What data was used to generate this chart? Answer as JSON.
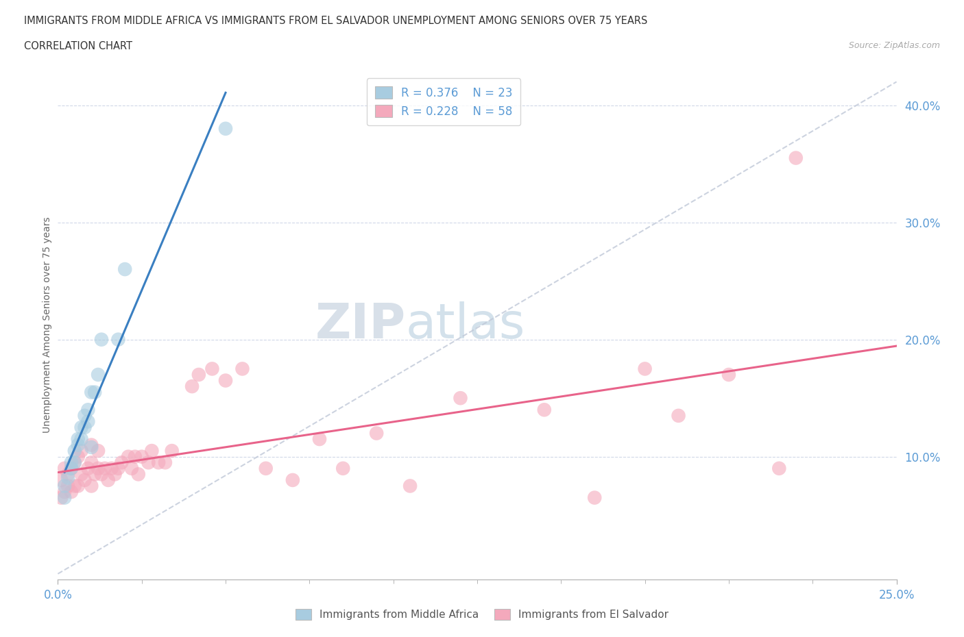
{
  "title_line1": "IMMIGRANTS FROM MIDDLE AFRICA VS IMMIGRANTS FROM EL SALVADOR UNEMPLOYMENT AMONG SENIORS OVER 75 YEARS",
  "title_line2": "CORRELATION CHART",
  "source_text": "Source: ZipAtlas.com",
  "ylabel": "Unemployment Among Seniors over 75 years",
  "xlim": [
    0.0,
    0.25
  ],
  "ylim": [
    -0.005,
    0.43
  ],
  "yticks": [
    0.1,
    0.2,
    0.3,
    0.4
  ],
  "ytick_labels": [
    "10.0%",
    "20.0%",
    "30.0%",
    "40.0%"
  ],
  "xticks": [
    0.0,
    0.25
  ],
  "xtick_labels": [
    "0.0%",
    "25.0%"
  ],
  "legend_r1": "R = 0.376",
  "legend_n1": "N = 23",
  "legend_r2": "R = 0.228",
  "legend_n2": "N = 58",
  "color_blue": "#a8cce0",
  "color_pink": "#f4a9bc",
  "color_trendline_blue": "#3a7fc1",
  "color_trendline_pink": "#e8638a",
  "color_diagonal": "#c0c8d8",
  "blue_points_x": [
    0.002,
    0.002,
    0.003,
    0.004,
    0.004,
    0.005,
    0.005,
    0.006,
    0.006,
    0.007,
    0.007,
    0.008,
    0.008,
    0.009,
    0.009,
    0.01,
    0.01,
    0.011,
    0.012,
    0.013,
    0.018,
    0.02,
    0.05
  ],
  "blue_points_y": [
    0.065,
    0.075,
    0.082,
    0.09,
    0.095,
    0.095,
    0.105,
    0.11,
    0.115,
    0.115,
    0.125,
    0.125,
    0.135,
    0.13,
    0.14,
    0.108,
    0.155,
    0.155,
    0.17,
    0.2,
    0.2,
    0.26,
    0.38
  ],
  "pink_points_x": [
    0.001,
    0.001,
    0.002,
    0.002,
    0.003,
    0.003,
    0.004,
    0.004,
    0.005,
    0.005,
    0.006,
    0.006,
    0.007,
    0.007,
    0.008,
    0.009,
    0.01,
    0.01,
    0.01,
    0.011,
    0.012,
    0.012,
    0.013,
    0.014,
    0.015,
    0.016,
    0.017,
    0.018,
    0.019,
    0.021,
    0.022,
    0.023,
    0.024,
    0.025,
    0.027,
    0.028,
    0.03,
    0.032,
    0.034,
    0.04,
    0.042,
    0.046,
    0.05,
    0.055,
    0.062,
    0.07,
    0.078,
    0.085,
    0.095,
    0.105,
    0.12,
    0.145,
    0.16,
    0.175,
    0.185,
    0.2,
    0.215,
    0.22
  ],
  "pink_points_y": [
    0.065,
    0.08,
    0.07,
    0.09,
    0.075,
    0.085,
    0.07,
    0.09,
    0.075,
    0.095,
    0.075,
    0.1,
    0.085,
    0.105,
    0.08,
    0.09,
    0.075,
    0.095,
    0.11,
    0.085,
    0.09,
    0.105,
    0.085,
    0.09,
    0.08,
    0.09,
    0.085,
    0.09,
    0.095,
    0.1,
    0.09,
    0.1,
    0.085,
    0.1,
    0.095,
    0.105,
    0.095,
    0.095,
    0.105,
    0.16,
    0.17,
    0.175,
    0.165,
    0.175,
    0.09,
    0.08,
    0.115,
    0.09,
    0.12,
    0.075,
    0.15,
    0.14,
    0.065,
    0.175,
    0.135,
    0.17,
    0.09,
    0.355
  ]
}
